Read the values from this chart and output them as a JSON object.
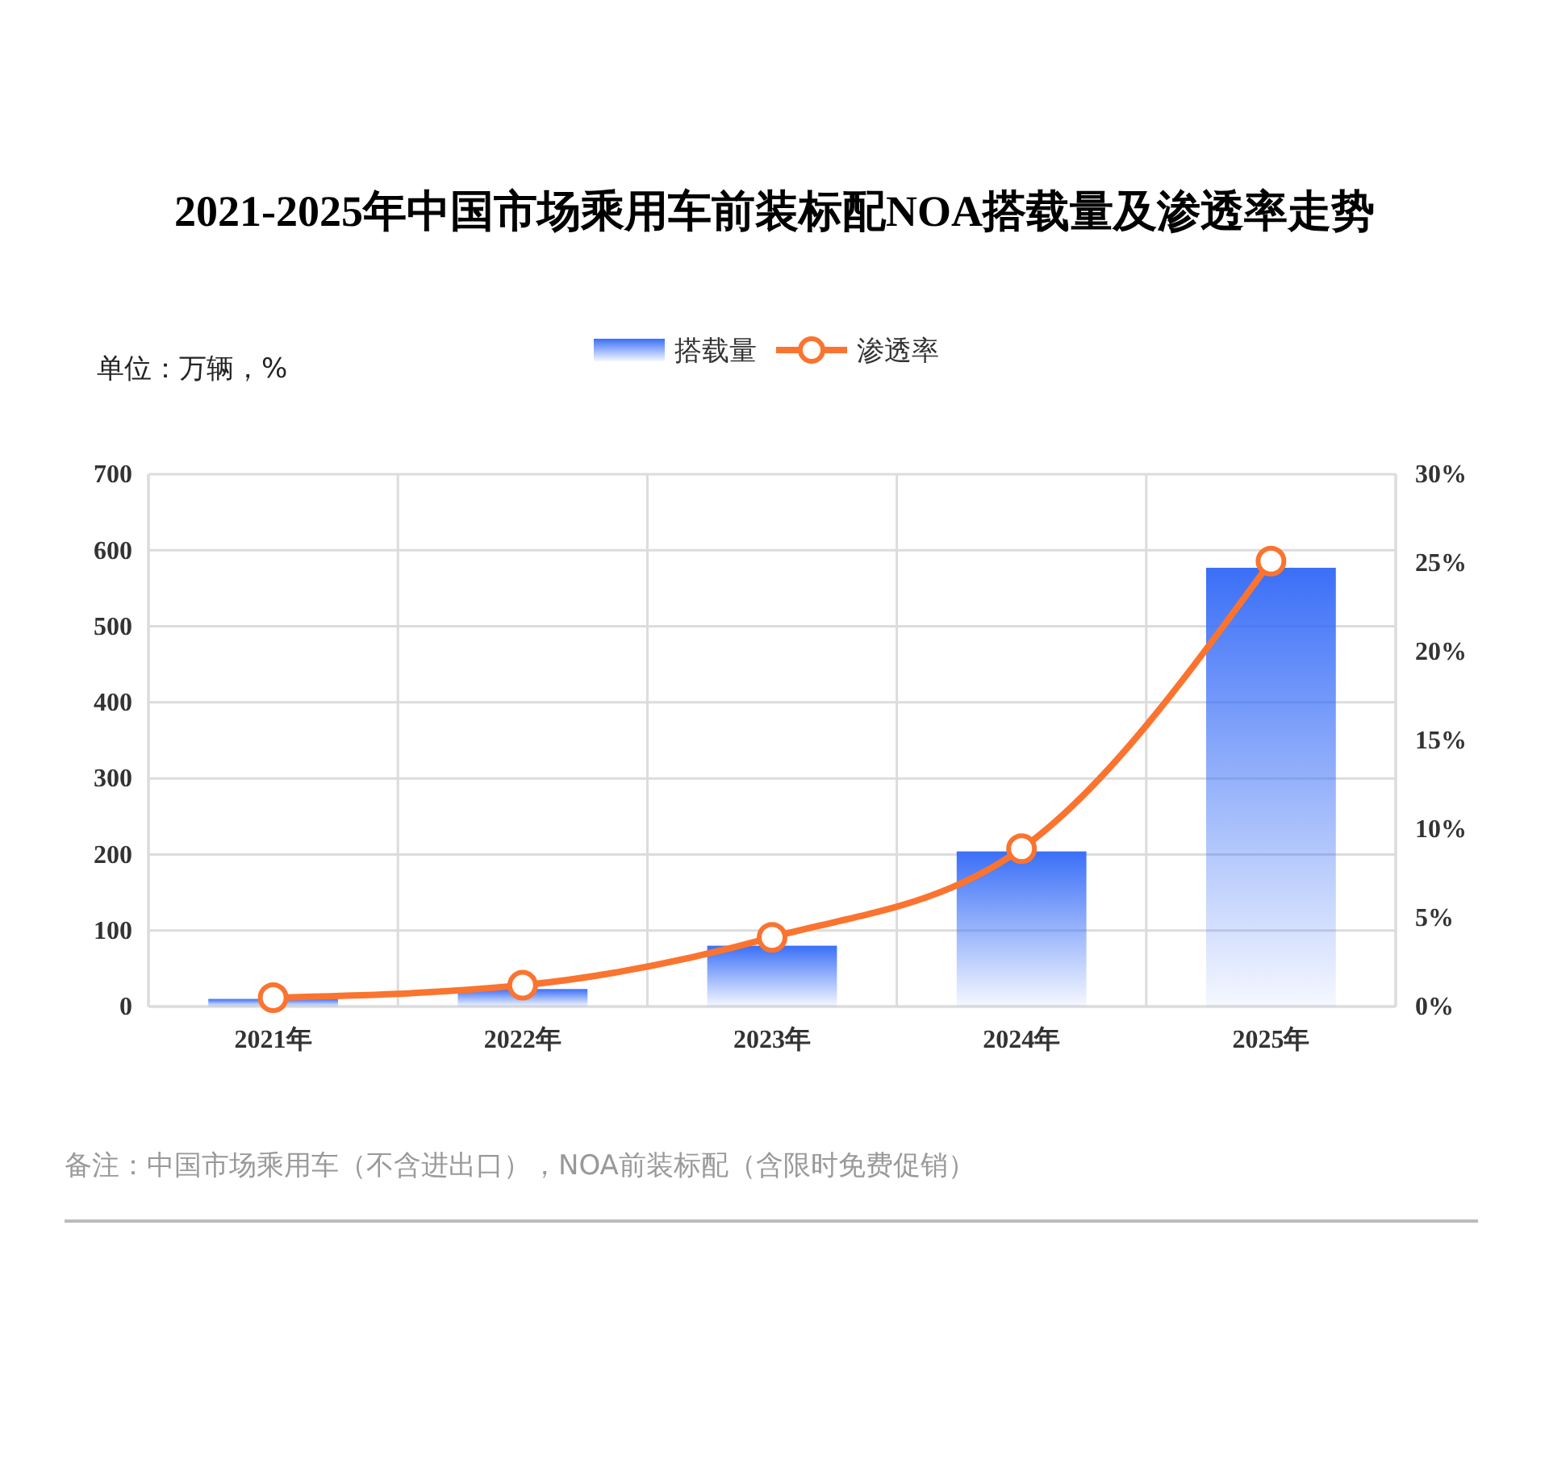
{
  "chart_data": {
    "type": "bar",
    "title": "2021-2025年中国市场乘用车前装标配NOA搭载量及渗透率走势",
    "categories": [
      "2021年",
      "2022年",
      "2023年",
      "2024年",
      "2025年"
    ],
    "series": [
      {
        "name": "搭载量",
        "color": "#3a6ff7",
        "values": [
          10,
          23,
          80,
          204,
          577
        ]
      },
      {
        "name": "渗透率",
        "type": "line",
        "axis": "y2",
        "color": "#fa7430",
        "marker": "circle",
        "values": [
          0.5,
          1.2,
          3.9,
          8.9,
          25.1
        ]
      }
    ],
    "ylim": [
      0,
      700
    ],
    "yticks": [
      0,
      100,
      200,
      300,
      400,
      500,
      600,
      700
    ],
    "y2lim": [
      0,
      30
    ],
    "y2ticks": [
      {
        "value": 0,
        "label": "0%"
      },
      {
        "value": 5,
        "label": "5%"
      },
      {
        "value": 10,
        "label": "10%"
      },
      {
        "value": 15,
        "label": "15%"
      },
      {
        "value": 20,
        "label": "20%"
      },
      {
        "value": 25,
        "label": "25%"
      },
      {
        "value": 30,
        "label": "30%"
      }
    ],
    "grid": true,
    "legend": "top",
    "annotations": [
      "单位：万辆，%",
      "备注：中国市场乘用车（不含进出口），NOA前装标配（含限时免费促销）"
    ]
  }
}
